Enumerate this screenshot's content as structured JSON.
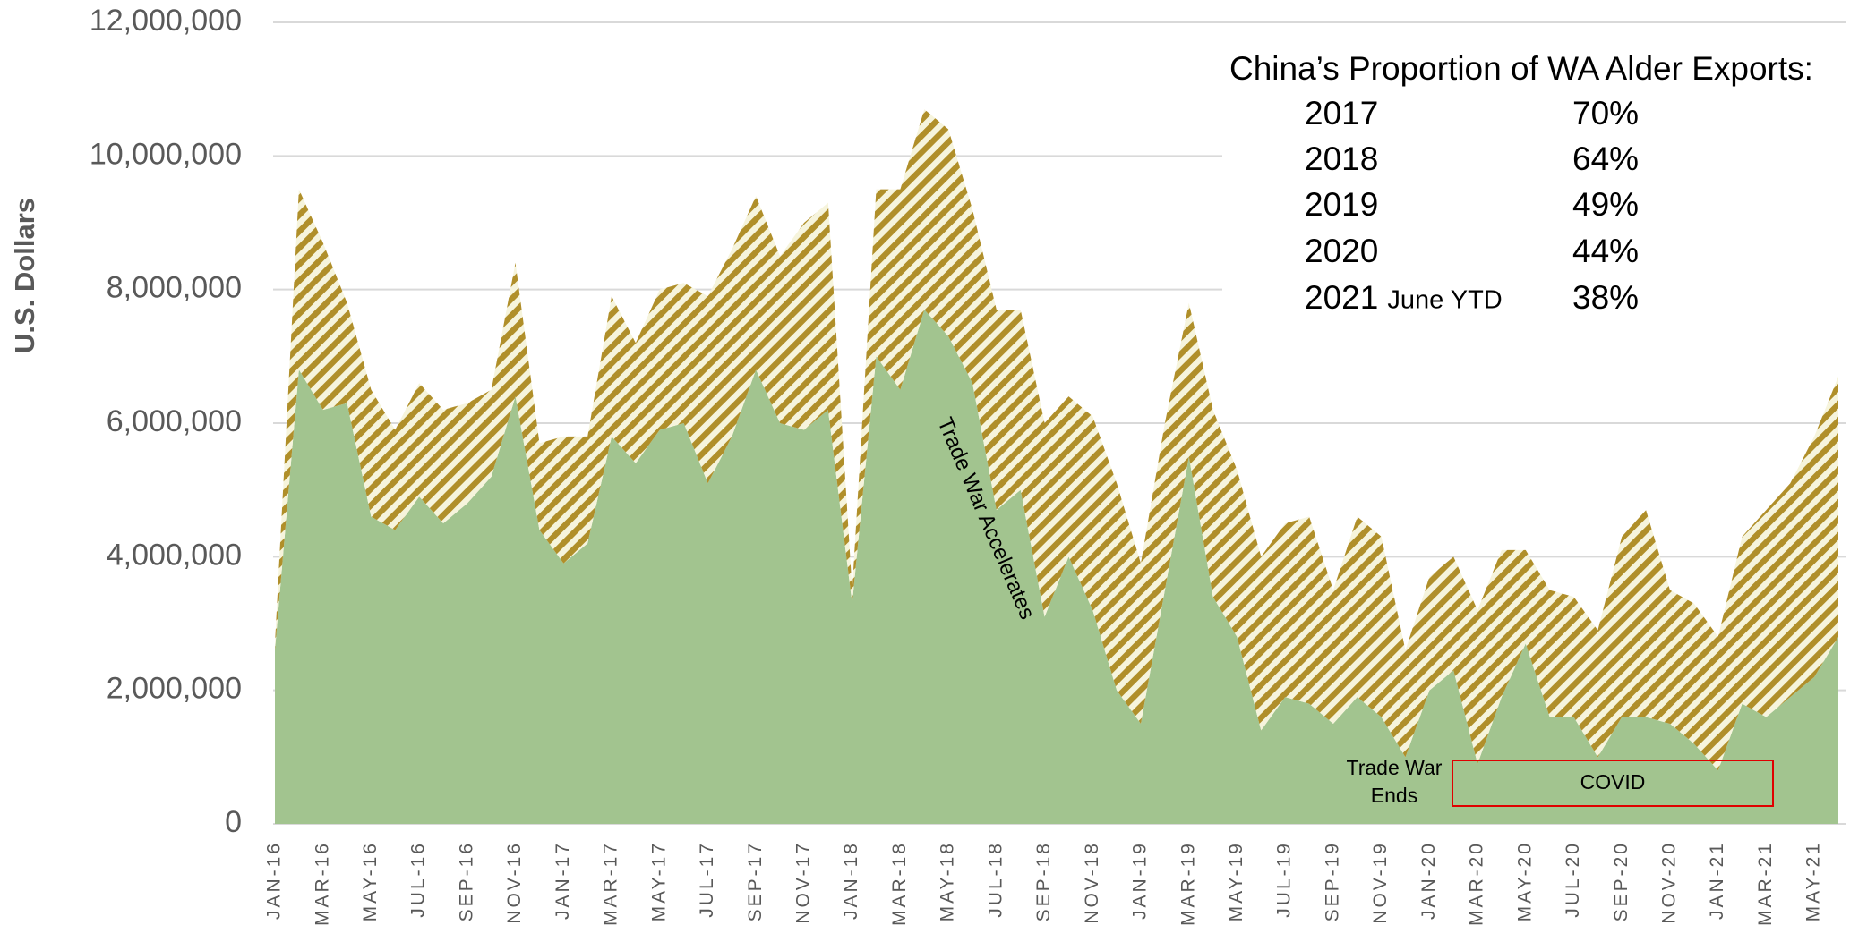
{
  "chart_data": {
    "type": "stacked_area",
    "y_label": "U.S. Dollars",
    "categories": [
      "JAN-16",
      null,
      "MAR-16",
      null,
      "MAY-16",
      null,
      "JUL-16",
      null,
      "SEP-16",
      null,
      "NOV-16",
      null,
      "JAN-17",
      null,
      "MAR-17",
      null,
      "MAY-17",
      null,
      "JUL-17",
      null,
      "SEP-17",
      null,
      "NOV-17",
      null,
      "JAN-18",
      null,
      "MAR-18",
      null,
      "MAY-18",
      null,
      "JUL-18",
      null,
      "SEP-18",
      null,
      "NOV-18",
      null,
      "JAN-19",
      null,
      "MAR-19",
      null,
      "MAY-19",
      null,
      "JUL-19",
      null,
      "SEP-19",
      null,
      "NOV-19",
      null,
      "JAN-20",
      null,
      "MAR-20",
      null,
      "MAY-20",
      null,
      "JUL-20",
      null,
      "SEP-20",
      null,
      "NOV-20",
      null,
      "JAN-21",
      null,
      "MAR-21",
      null,
      "MAY-21",
      null
    ],
    "series": [
      {
        "color": "#a2c48f",
        "values": [
          2600000,
          6800000,
          6200000,
          6300000,
          4600000,
          4400000,
          4900000,
          4500000,
          4800000,
          5200000,
          6400000,
          4400000,
          3900000,
          4200000,
          5800000,
          5400000,
          5900000,
          6000000,
          5100000,
          5800000,
          6800000,
          6000000,
          5900000,
          6200000,
          3300000,
          7000000,
          6500000,
          7700000,
          7300000,
          6600000,
          4700000,
          5000000,
          3100000,
          4000000,
          3200000,
          2000000,
          1500000,
          3500000,
          5500000,
          3400000,
          2800000,
          1400000,
          1900000,
          1800000,
          1500000,
          1900000,
          1600000,
          1000000,
          2000000,
          2300000,
          900000,
          1900000,
          2700000,
          1600000,
          1600000,
          1000000,
          1600000,
          1600000,
          1500000,
          1200000,
          800000,
          1800000,
          1600000,
          1900000,
          2200000,
          2800000
        ]
      },
      {
        "color": "#b08f2a",
        "hatch": true,
        "values": [
          100000,
          2700000,
          2500000,
          1500000,
          1900000,
          1500000,
          1700000,
          1700000,
          1500000,
          1300000,
          2000000,
          1300000,
          1900000,
          1600000,
          2100000,
          1800000,
          2100000,
          2100000,
          2800000,
          2800000,
          2600000,
          2500000,
          3100000,
          3100000,
          200000,
          2500000,
          3000000,
          3000000,
          3100000,
          2600000,
          3000000,
          2700000,
          2900000,
          2400000,
          2900000,
          3100000,
          2400000,
          2500000,
          2300000,
          2800000,
          2500000,
          2600000,
          2600000,
          2800000,
          2000000,
          2700000,
          2700000,
          1600000,
          1700000,
          1700000,
          2300000,
          2200000,
          1400000,
          1900000,
          1800000,
          1900000,
          2700000,
          3100000,
          2000000,
          2100000,
          2000000,
          2500000,
          3100000,
          3200000,
          3600000,
          3900000
        ]
      }
    ],
    "ylim": [
      0,
      12000000
    ],
    "yticks": [
      0,
      {
        "value": 2000000,
        "label": "2,000,000"
      },
      {
        "value": 4000000,
        "label": "4,000,000"
      },
      {
        "value": 6000000,
        "label": "6,000,000"
      },
      {
        "value": 8000000,
        "label": "8,000,000"
      },
      {
        "value": 10000000,
        "label": "10,000,000"
      },
      {
        "value": 12000000,
        "label": "12,000,000"
      }
    ],
    "grid": true,
    "proportion_box": {
      "title": "China’s Proportion of WA Alder Exports:",
      "rows": [
        {
          "year": "2017",
          "share": "70%"
        },
        {
          "year": "2018",
          "share": "64%"
        },
        {
          "year": "2019",
          "share": "49%"
        },
        {
          "year": "2020",
          "share": "44%"
        },
        {
          "year": "2021",
          "note": "June YTD",
          "share": "38%"
        }
      ]
    },
    "annotations": {
      "trade_war_accelerates": "Trade War Accelerates",
      "trade_war_ends": [
        "Trade War",
        "Ends"
      ],
      "covid": "COVID"
    }
  }
}
